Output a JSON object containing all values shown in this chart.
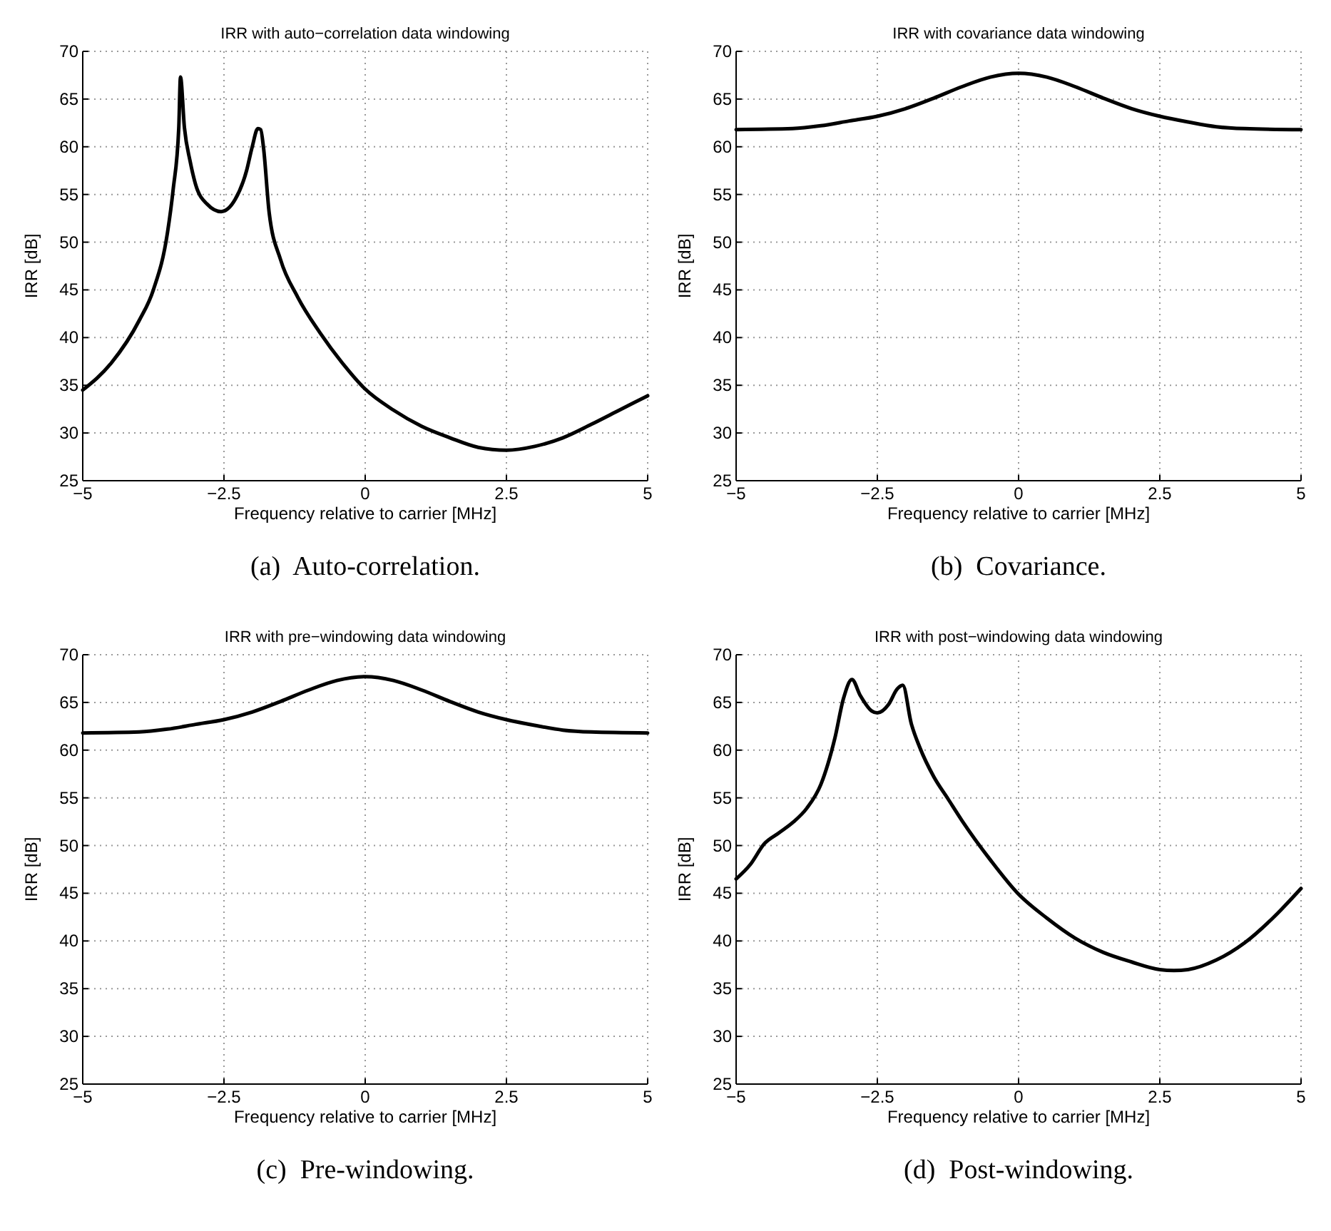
{
  "chart_data": [
    {
      "type": "line",
      "title": "IRR with auto−correlation data windowing",
      "xlabel": "Frequency relative to carrier [MHz]",
      "ylabel": "IRR [dB]",
      "annotations": [
        "(a)  Auto-correlation."
      ],
      "xlim": [
        -5,
        5
      ],
      "ylim": [
        25,
        70
      ],
      "xticks": [
        -5,
        -2.5,
        0,
        2.5,
        5
      ],
      "yticks": [
        25,
        30,
        35,
        40,
        45,
        50,
        55,
        60,
        65,
        70
      ],
      "grid": true,
      "x": [
        -5,
        -4.5,
        -4,
        -3.75,
        -3.5,
        -3.4,
        -3.3,
        -3.27,
        -3.2,
        -3.1,
        -3,
        -2.8,
        -2.55,
        -2.3,
        -2.1,
        -2,
        -1.9,
        -1.85,
        -1.8,
        -1.7,
        -1.5,
        -1.2,
        -0.8,
        -0.4,
        0,
        0.5,
        1,
        1.5,
        2,
        2.5,
        3,
        3.5,
        4,
        4.5,
        5
      ],
      "series": [
        {
          "color": "#000000",
          "values": [
            34.5,
            37.3,
            41.8,
            45,
            51,
            55.5,
            62,
            67.3,
            62,
            58.5,
            56,
            54,
            53.2,
            54.5,
            57.5,
            60,
            61.9,
            61.8,
            59.9,
            53.1,
            48.2,
            44.3,
            40.5,
            37.3,
            34.6,
            32.4,
            30.7,
            29.5,
            28.5,
            28.2,
            28.6,
            29.5,
            30.9,
            32.4,
            33.9
          ]
        }
      ]
    },
    {
      "type": "line",
      "title": "IRR with covariance data windowing",
      "xlabel": "Frequency relative to carrier [MHz]",
      "ylabel": "IRR [dB]",
      "annotations": [
        "(b)  Covariance."
      ],
      "xlim": [
        -5,
        5
      ],
      "ylim": [
        25,
        70
      ],
      "xticks": [
        -5,
        -2.5,
        0,
        2.5,
        5
      ],
      "yticks": [
        25,
        30,
        35,
        40,
        45,
        50,
        55,
        60,
        65,
        70
      ],
      "grid": true,
      "x": [
        -5,
        -4,
        -3.5,
        -3,
        -2.5,
        -2,
        -1.5,
        -1,
        -0.5,
        0,
        0.5,
        1,
        1.5,
        2,
        2.5,
        3,
        3.5,
        4,
        5
      ],
      "series": [
        {
          "color": "#000000",
          "values": [
            61.8,
            61.9,
            62.2,
            62.7,
            63.2,
            64,
            65.1,
            66.3,
            67.3,
            67.7,
            67.3,
            66.3,
            65.1,
            64,
            63.2,
            62.6,
            62.1,
            61.9,
            61.8
          ]
        }
      ]
    },
    {
      "type": "line",
      "title": "IRR with pre−windowing data windowing",
      "xlabel": "Frequency relative to carrier [MHz]",
      "ylabel": "IRR [dB]",
      "annotations": [
        "(c)  Pre-windowing."
      ],
      "xlim": [
        -5,
        5
      ],
      "ylim": [
        25,
        70
      ],
      "xticks": [
        -5,
        -2.5,
        0,
        2.5,
        5
      ],
      "yticks": [
        25,
        30,
        35,
        40,
        45,
        50,
        55,
        60,
        65,
        70
      ],
      "grid": true,
      "x": [
        -5,
        -4,
        -3.5,
        -3,
        -2.5,
        -2,
        -1.5,
        -1,
        -0.5,
        0,
        0.5,
        1,
        1.5,
        2,
        2.5,
        3,
        3.5,
        4,
        5
      ],
      "series": [
        {
          "color": "#000000",
          "values": [
            61.8,
            61.9,
            62.2,
            62.7,
            63.2,
            64,
            65.1,
            66.3,
            67.3,
            67.7,
            67.3,
            66.3,
            65.1,
            64,
            63.2,
            62.6,
            62.1,
            61.9,
            61.8
          ]
        }
      ]
    },
    {
      "type": "line",
      "title": "IRR with post−windowing data windowing",
      "xlabel": "Frequency relative to carrier [MHz]",
      "ylabel": "IRR [dB]",
      "annotations": [
        "(d)  Post-windowing."
      ],
      "xlim": [
        -5,
        5
      ],
      "ylim": [
        25,
        70
      ],
      "xticks": [
        -5,
        -2.5,
        0,
        2.5,
        5
      ],
      "yticks": [
        25,
        30,
        35,
        40,
        45,
        50,
        55,
        60,
        65,
        70
      ],
      "grid": true,
      "x": [
        -5,
        -4.75,
        -4.5,
        -4.25,
        -4,
        -3.75,
        -3.5,
        -3.25,
        -3.1,
        -2.95,
        -2.8,
        -2.6,
        -2.5,
        -2.3,
        -2.15,
        -2.05,
        -1.9,
        -1.75,
        -1.5,
        -1.25,
        -1,
        -0.5,
        0,
        0.5,
        1,
        1.5,
        2,
        2.5,
        2.75,
        3,
        3.5,
        4,
        4.5,
        5
      ],
      "series": [
        {
          "color": "#000000",
          "values": [
            46.5,
            48,
            50.2,
            51.3,
            52.4,
            53.9,
            56.4,
            61.3,
            65.4,
            67.4,
            65.7,
            64.1,
            63.9,
            64.8,
            66.4,
            66.8,
            62.8,
            60.3,
            57.2,
            54.9,
            52.6,
            48.5,
            44.9,
            42.4,
            40.3,
            38.8,
            37.8,
            37,
            36.9,
            37,
            38,
            39.8,
            42.4,
            45.5
          ]
        }
      ]
    }
  ]
}
